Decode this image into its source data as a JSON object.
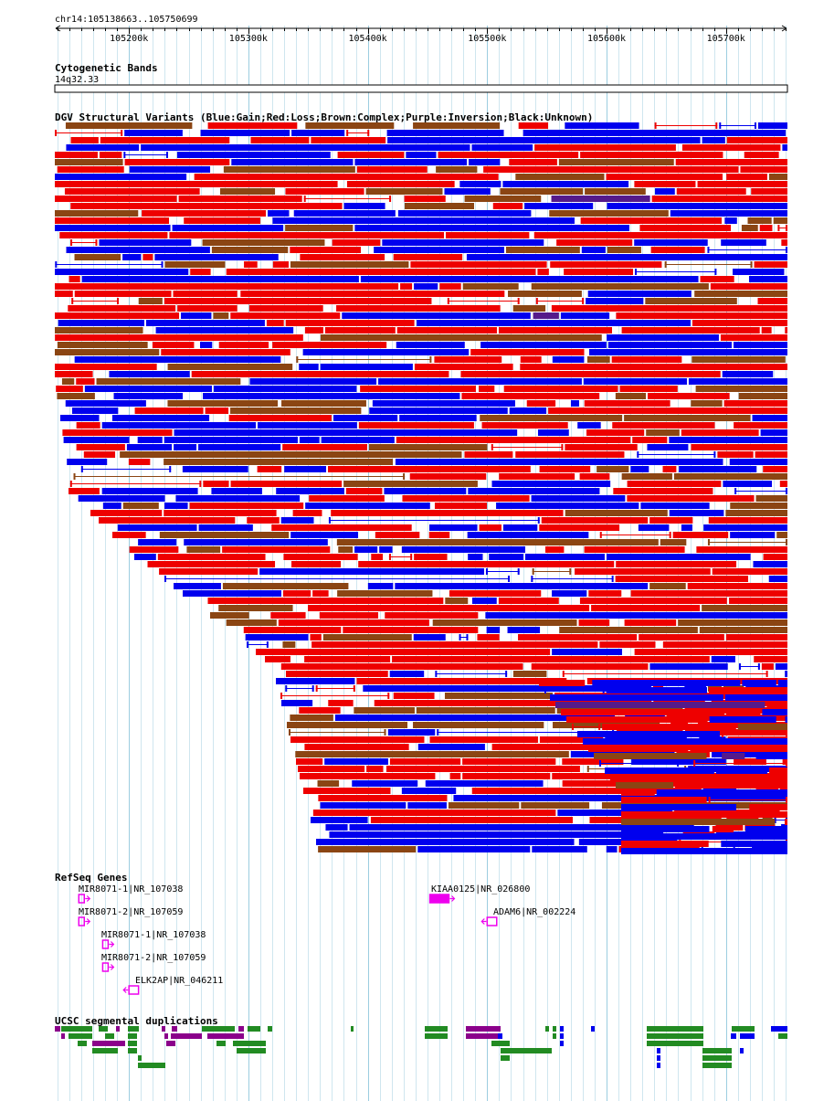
{
  "ruler": {
    "locus": "chr14:105138663..105750699",
    "start": 105138663,
    "end": 105750699,
    "ticks": [
      {
        "pos": 105200000,
        "label": "105200k"
      },
      {
        "pos": 105300000,
        "label": "105300k"
      },
      {
        "pos": 105400000,
        "label": "105400k"
      },
      {
        "pos": 105500000,
        "label": "105500k"
      },
      {
        "pos": 105600000,
        "label": "105600k"
      },
      {
        "pos": 105700000,
        "label": "105700k"
      }
    ]
  },
  "tracks": {
    "cytoband": {
      "title": "Cytogenetic Bands",
      "band": "14q32.33"
    },
    "dgv": {
      "title": "DGV Structural Variants (Blue:Gain;Red:Loss;Brown:Complex;Purple:Inversion;Black:Unknown)",
      "colors": {
        "gain": "#0000ee",
        "loss": "#ee0000",
        "complex": "#8b4513",
        "inversion": "#551a8b",
        "unknown": "#000000"
      }
    },
    "refseq": {
      "title": "RefSeq Genes",
      "color": "#ee00ee",
      "genes": [
        {
          "label": "MIR8071-1|NR_107038",
          "start": 105158000,
          "end": 105161000,
          "strand": "+"
        },
        {
          "label": "KIAA0125|NR_026800",
          "start": 105452000,
          "end": 105468000,
          "strand": "+"
        },
        {
          "label": "MIR8071-2|NR_107059",
          "start": 105158000,
          "end": 105161000,
          "strand": "+"
        },
        {
          "label": "ADAM6|NR_002224",
          "start": 105500000,
          "end": 105508000,
          "strand": "-"
        },
        {
          "label": "MIR8071-1|NR_107038",
          "start": 105178000,
          "end": 105181000,
          "strand": "+"
        },
        {
          "label": "MIR8071-2|NR_107059",
          "start": 105178000,
          "end": 105181000,
          "strand": "+"
        },
        {
          "label": "ELK2AP|NR_046211",
          "start": 105200000,
          "end": 105208000,
          "strand": "-"
        }
      ]
    },
    "segdup": {
      "title": "UCSC segmental duplications",
      "colors": {
        "green": "#228b22",
        "purple": "#8b008b",
        "blue": "#0000ee"
      }
    }
  }
}
